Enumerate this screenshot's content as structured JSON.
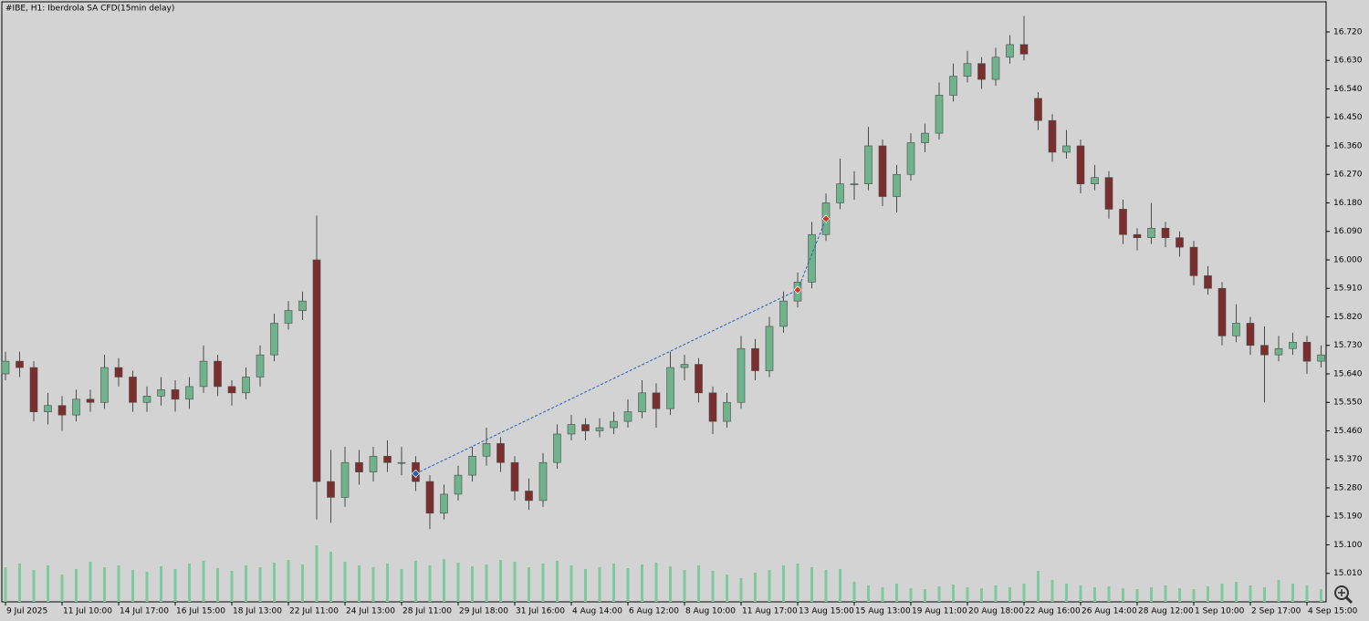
{
  "chart_data": {
    "type": "candlestick",
    "title": "#IBE, H1:  Iberdrola SA CFD(15min delay)",
    "up_color": "#6fb38d",
    "down_color": "#7a2e2e",
    "wick_color": "#4a4a4a",
    "volume_color": "#7ec99e",
    "trade_color": "#1f5fbf",
    "close_marker_color": "#e0301e",
    "ylim": [
      14.92,
      16.815
    ],
    "yticks": [
      {
        "value": 15.01,
        "label": "15.010"
      },
      {
        "value": 15.1,
        "label": "15.100"
      },
      {
        "value": 15.19,
        "label": "15.190"
      },
      {
        "value": 15.28,
        "label": "15.280"
      },
      {
        "value": 15.37,
        "label": "15.370"
      },
      {
        "value": 15.46,
        "label": "15.460"
      },
      {
        "value": 15.55,
        "label": "15.550"
      },
      {
        "value": 15.64,
        "label": "15.640"
      },
      {
        "value": 15.73,
        "label": "15.730"
      },
      {
        "value": 15.82,
        "label": "15.820"
      },
      {
        "value": 15.91,
        "label": "15.910"
      },
      {
        "value": 16.0,
        "label": "16.000"
      },
      {
        "value": 16.09,
        "label": "16.090"
      },
      {
        "value": 16.18,
        "label": "16.180"
      },
      {
        "value": 16.27,
        "label": "16.270"
      },
      {
        "value": 16.36,
        "label": "16.360"
      },
      {
        "value": 16.45,
        "label": "16.450"
      },
      {
        "value": 16.54,
        "label": "16.540"
      },
      {
        "value": 16.63,
        "label": "16.630"
      },
      {
        "value": 16.72,
        "label": "16.720"
      }
    ],
    "vlim": [
      0,
      100
    ],
    "trade": {
      "open": 15.325,
      "close": 15.905,
      "exit": 16.13
    },
    "categories": [
      "9 Jul 2025",
      null,
      null,
      null,
      "11 Jul 10:00",
      null,
      null,
      null,
      "14 Jul 17:00",
      null,
      null,
      null,
      "16 Jul 15:00",
      null,
      null,
      null,
      "18 Jul 13:00",
      null,
      null,
      null,
      "22 Jul 11:00",
      null,
      null,
      null,
      "24 Jul 13:00",
      null,
      null,
      null,
      "28 Jul 11:00",
      null,
      null,
      null,
      "29 Jul 18:00",
      null,
      null,
      null,
      "31 Jul 16:00",
      null,
      null,
      null,
      "4 Aug 14:00",
      null,
      null,
      null,
      "6 Aug 12:00",
      null,
      null,
      null,
      "8 Aug 10:00",
      null,
      null,
      null,
      "11 Aug 17:00",
      null,
      null,
      null,
      "13 Aug 15:00",
      null,
      null,
      null,
      "15 Aug 13:00",
      null,
      null,
      null,
      "19 Aug 11:00",
      null,
      null,
      null,
      "20 Aug 18:00",
      null,
      null,
      null,
      "22 Aug 16:00",
      null,
      null,
      null,
      "26 Aug 14:00",
      null,
      null,
      null,
      "28 Aug 12:00",
      null,
      null,
      null,
      "1 Sep 10:00",
      null,
      null,
      null,
      "2 Sep 17:00",
      null,
      null,
      null,
      "4 Sep 15:00",
      null
    ],
    "ohlc": [
      [
        15.64,
        15.71,
        15.62,
        15.68
      ],
      [
        15.68,
        15.71,
        15.63,
        15.66
      ],
      [
        15.66,
        15.68,
        15.49,
        15.52
      ],
      [
        15.52,
        15.58,
        15.48,
        15.54
      ],
      [
        15.54,
        15.57,
        15.46,
        15.51
      ],
      [
        15.51,
        15.59,
        15.49,
        15.56
      ],
      [
        15.56,
        15.59,
        15.52,
        15.55
      ],
      [
        15.55,
        15.7,
        15.53,
        15.66
      ],
      [
        15.66,
        15.69,
        15.6,
        15.63
      ],
      [
        15.63,
        15.65,
        15.52,
        15.55
      ],
      [
        15.55,
        15.6,
        15.52,
        15.57
      ],
      [
        15.57,
        15.63,
        15.54,
        15.59
      ],
      [
        15.59,
        15.62,
        15.52,
        15.56
      ],
      [
        15.56,
        15.63,
        15.53,
        15.6
      ],
      [
        15.6,
        15.73,
        15.58,
        15.68
      ],
      [
        15.68,
        15.7,
        15.57,
        15.6
      ],
      [
        15.6,
        15.62,
        15.54,
        15.58
      ],
      [
        15.58,
        15.66,
        15.56,
        15.63
      ],
      [
        15.63,
        15.73,
        15.6,
        15.7
      ],
      [
        15.7,
        15.83,
        15.68,
        15.8
      ],
      [
        15.8,
        15.87,
        15.78,
        15.84
      ],
      [
        15.84,
        15.9,
        15.81,
        15.87
      ],
      [
        16.0,
        16.14,
        15.18,
        15.3
      ],
      [
        15.3,
        15.4,
        15.17,
        15.25
      ],
      [
        15.25,
        15.41,
        15.22,
        15.36
      ],
      [
        15.36,
        15.4,
        15.29,
        15.33
      ],
      [
        15.33,
        15.41,
        15.3,
        15.38
      ],
      [
        15.38,
        15.43,
        15.33,
        15.36
      ],
      [
        15.36,
        15.41,
        15.32,
        15.36
      ],
      [
        15.36,
        15.38,
        15.27,
        15.3
      ],
      [
        15.3,
        15.32,
        15.15,
        15.2
      ],
      [
        15.2,
        15.29,
        15.18,
        15.26
      ],
      [
        15.26,
        15.35,
        15.24,
        15.32
      ],
      [
        15.32,
        15.41,
        15.3,
        15.38
      ],
      [
        15.38,
        15.47,
        15.35,
        15.42
      ],
      [
        15.42,
        15.44,
        15.33,
        15.36
      ],
      [
        15.36,
        15.38,
        15.24,
        15.27
      ],
      [
        15.27,
        15.31,
        15.21,
        15.24
      ],
      [
        15.24,
        15.39,
        15.22,
        15.36
      ],
      [
        15.36,
        15.48,
        15.34,
        15.45
      ],
      [
        15.45,
        15.51,
        15.43,
        15.48
      ],
      [
        15.48,
        15.5,
        15.43,
        15.46
      ],
      [
        15.46,
        15.5,
        15.44,
        15.47
      ],
      [
        15.47,
        15.52,
        15.45,
        15.49
      ],
      [
        15.49,
        15.56,
        15.47,
        15.52
      ],
      [
        15.52,
        15.62,
        15.5,
        15.58
      ],
      [
        15.58,
        15.61,
        15.47,
        15.53
      ],
      [
        15.53,
        15.71,
        15.51,
        15.66
      ],
      [
        15.66,
        15.7,
        15.62,
        15.67
      ],
      [
        15.67,
        15.69,
        15.55,
        15.58
      ],
      [
        15.58,
        15.6,
        15.45,
        15.49
      ],
      [
        15.49,
        15.58,
        15.47,
        15.55
      ],
      [
        15.55,
        15.76,
        15.53,
        15.72
      ],
      [
        15.72,
        15.75,
        15.62,
        15.65
      ],
      [
        15.65,
        15.82,
        15.63,
        15.79
      ],
      [
        15.79,
        15.9,
        15.77,
        15.87
      ],
      [
        15.87,
        15.96,
        15.85,
        15.93
      ],
      [
        15.93,
        16.12,
        15.91,
        16.08
      ],
      [
        16.08,
        16.21,
        16.06,
        16.18
      ],
      [
        16.18,
        16.32,
        16.16,
        16.24
      ],
      [
        16.24,
        16.28,
        16.19,
        16.24
      ],
      [
        16.24,
        16.42,
        16.22,
        16.36
      ],
      [
        16.36,
        16.38,
        16.17,
        16.2
      ],
      [
        16.2,
        16.3,
        16.15,
        16.27
      ],
      [
        16.27,
        16.4,
        16.25,
        16.37
      ],
      [
        16.37,
        16.43,
        16.34,
        16.4
      ],
      [
        16.4,
        16.56,
        16.38,
        16.52
      ],
      [
        16.52,
        16.62,
        16.5,
        16.58
      ],
      [
        16.58,
        16.66,
        16.56,
        16.62
      ],
      [
        16.62,
        16.64,
        16.54,
        16.57
      ],
      [
        16.57,
        16.67,
        16.55,
        16.64
      ],
      [
        16.64,
        16.71,
        16.62,
        16.68
      ],
      [
        16.68,
        16.77,
        16.63,
        16.65
      ],
      [
        16.51,
        16.53,
        16.41,
        16.44
      ],
      [
        16.44,
        16.46,
        16.31,
        16.34
      ],
      [
        16.34,
        16.41,
        16.32,
        16.36
      ],
      [
        16.36,
        16.38,
        16.21,
        16.24
      ],
      [
        16.24,
        16.3,
        16.22,
        16.26
      ],
      [
        16.26,
        16.28,
        16.13,
        16.16
      ],
      [
        16.16,
        16.19,
        16.05,
        16.08
      ],
      [
        16.08,
        16.1,
        16.03,
        16.07
      ],
      [
        16.07,
        16.18,
        16.05,
        16.1
      ],
      [
        16.1,
        16.12,
        16.04,
        16.07
      ],
      [
        16.07,
        16.09,
        16.01,
        16.04
      ],
      [
        16.04,
        16.06,
        15.92,
        15.95
      ],
      [
        15.95,
        15.98,
        15.89,
        15.91
      ],
      [
        15.91,
        15.93,
        15.73,
        15.76
      ],
      [
        15.76,
        15.86,
        15.74,
        15.8
      ],
      [
        15.8,
        15.82,
        15.7,
        15.73
      ],
      [
        15.73,
        15.79,
        15.55,
        15.7
      ],
      [
        15.7,
        15.76,
        15.68,
        15.72
      ],
      [
        15.72,
        15.77,
        15.7,
        15.74
      ],
      [
        15.74,
        15.76,
        15.64,
        15.68
      ],
      [
        15.68,
        15.73,
        15.66,
        15.7
      ]
    ],
    "volume": [
      38,
      42,
      35,
      40,
      30,
      36,
      44,
      38,
      40,
      35,
      33,
      39,
      36,
      42,
      45,
      37,
      34,
      40,
      38,
      43,
      46,
      41,
      62,
      55,
      44,
      40,
      38,
      42,
      36,
      45,
      40,
      47,
      43,
      39,
      41,
      46,
      44,
      38,
      42,
      45,
      40,
      36,
      38,
      42,
      37,
      41,
      43,
      39,
      35,
      40,
      34,
      30,
      26,
      32,
      35,
      40,
      42,
      38,
      35,
      36,
      22,
      18,
      16,
      20,
      15,
      14,
      17,
      19,
      16,
      15,
      18,
      16,
      20,
      34,
      24,
      20,
      18,
      16,
      17,
      15,
      14,
      16,
      18,
      15,
      14,
      17,
      20,
      22,
      18,
      16,
      24,
      20,
      18,
      14
    ]
  }
}
